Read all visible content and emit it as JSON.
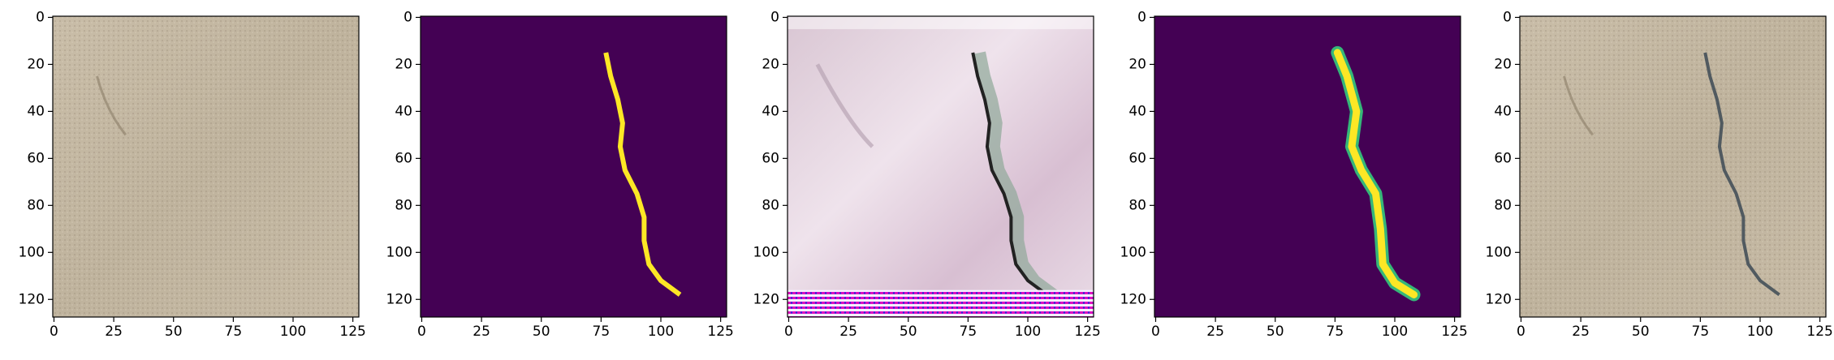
{
  "chart_data": [
    {
      "type": "photo",
      "xlim": [
        -0.5,
        127.5
      ],
      "ylim": [
        127.5,
        -0.5
      ],
      "xticks": [
        0,
        25,
        50,
        75,
        100,
        125
      ],
      "yticks": [
        0,
        20,
        40,
        60,
        80,
        100,
        120
      ]
    },
    {
      "type": "mask",
      "xlim": [
        -0.5,
        127.5
      ],
      "ylim": [
        127.5,
        -0.5
      ],
      "xticks": [
        0,
        25,
        50,
        75,
        100,
        125
      ],
      "yticks": [
        0,
        20,
        40,
        60,
        80,
        100,
        120
      ]
    },
    {
      "type": "generated",
      "xlim": [
        -0.5,
        127.5
      ],
      "ylim": [
        127.5,
        -0.5
      ],
      "xticks": [
        0,
        25,
        50,
        75,
        100,
        125
      ],
      "yticks": [
        0,
        20,
        40,
        60,
        80,
        100,
        120
      ]
    },
    {
      "type": "smoothmask",
      "xlim": [
        -0.5,
        127.5
      ],
      "ylim": [
        127.5,
        -0.5
      ],
      "xticks": [
        0,
        25,
        50,
        75,
        100,
        125
      ],
      "yticks": [
        0,
        20,
        40,
        60,
        80,
        100,
        120
      ]
    },
    {
      "type": "overlay",
      "xlim": [
        -0.5,
        127.5
      ],
      "ylim": [
        127.5,
        -0.5
      ],
      "xticks": [
        0,
        25,
        50,
        75,
        100,
        125
      ],
      "yticks": [
        0,
        20,
        40,
        60,
        80,
        100,
        120
      ]
    }
  ]
}
